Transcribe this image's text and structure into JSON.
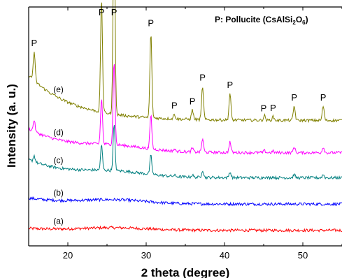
{
  "chart_data": {
    "type": "line",
    "xlabel": "2 theta (degree)",
    "ylabel": "Intensity (a. u.)",
    "xlim": [
      15,
      55
    ],
    "xticks": [
      "20",
      "30",
      "40",
      "50"
    ],
    "yticks_shown": false,
    "grid": false,
    "legend_placement": "top-right",
    "legend": {
      "key": "P",
      "text": ": Pollucite (CsAlSi",
      "sub1": "2",
      "mid": "O",
      "sub2": "6",
      "close": ")"
    },
    "series": [
      {
        "name": "(a)",
        "color": "#ff0000",
        "offset": 0.065,
        "peak_scale": 0.0,
        "hump": 0.01,
        "baseline_drop": 0.008
      },
      {
        "name": "(b)",
        "color": "#0000ff",
        "offset": 0.175,
        "peak_scale": 0.0,
        "hump": 0.015,
        "baseline_drop": 0.025
      },
      {
        "name": "(c)",
        "color": "#007f7f",
        "offset": 0.285,
        "peak_scale": 0.22,
        "hump": 0.02,
        "baseline_drop": 0.075
      },
      {
        "name": "(d)",
        "color": "#ff00ff",
        "offset": 0.39,
        "peak_scale": 0.4,
        "hump": 0.02,
        "baseline_drop": 0.1
      },
      {
        "name": "(e)",
        "color": "#808000",
        "offset": 0.525,
        "peak_scale": 1.0,
        "hump": 0.0,
        "baseline_drop": 0.19
      }
    ],
    "peaks": [
      {
        "x": 15.7,
        "rel": 0.12
      },
      {
        "x": 24.3,
        "rel": 0.48
      },
      {
        "x": 25.9,
        "rel": 0.88
      },
      {
        "x": 30.6,
        "rel": 0.36
      },
      {
        "x": 33.6,
        "rel": 0.02
      },
      {
        "x": 35.9,
        "rel": 0.04
      },
      {
        "x": 37.2,
        "rel": 0.14
      },
      {
        "x": 40.7,
        "rel": 0.11
      },
      {
        "x": 45.1,
        "rel": 0.02
      },
      {
        "x": 46.2,
        "rel": 0.015
      },
      {
        "x": 48.9,
        "rel": 0.06
      },
      {
        "x": 52.6,
        "rel": 0.06
      }
    ],
    "peak_labels": [
      {
        "x": 15.7,
        "text": "P"
      },
      {
        "x": 24.3,
        "text": "P"
      },
      {
        "x": 25.9,
        "text": "P"
      },
      {
        "x": 30.6,
        "text": "P"
      },
      {
        "x": 33.6,
        "text": "P"
      },
      {
        "x": 35.9,
        "text": "P"
      },
      {
        "x": 37.2,
        "text": "P"
      },
      {
        "x": 40.7,
        "text": "P"
      },
      {
        "x": 45.0,
        "text": "P"
      },
      {
        "x": 46.2,
        "text": "P"
      },
      {
        "x": 48.9,
        "text": "P"
      },
      {
        "x": 52.6,
        "text": "P"
      }
    ]
  }
}
